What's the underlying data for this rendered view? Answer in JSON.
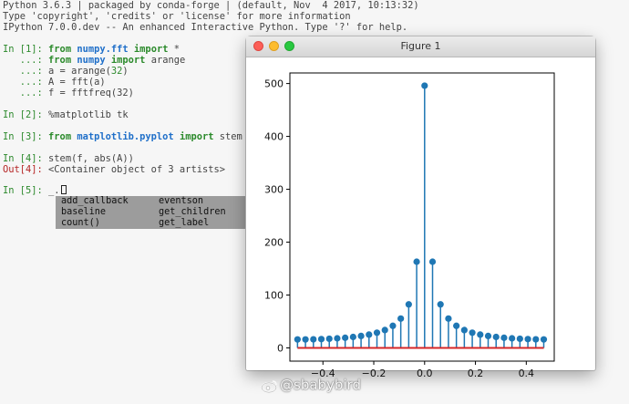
{
  "terminal": {
    "banner": [
      "Python 3.6.3 | packaged by conda-forge | (default, Nov  4 2017, 10:13:32)",
      "Type 'copyright', 'credits' or 'license' for more information",
      "IPython 7.0.0.dev -- An enhanced Interactive Python. Type '?' for help."
    ],
    "cells": {
      "c1": {
        "prompt": "In [1]: ",
        "cont": "   ...: ",
        "l1": {
          "kw1": "from",
          "mod": "numpy.fft",
          "kw2": "import",
          "rest": "*"
        },
        "l2": {
          "kw1": "from",
          "mod": "numpy",
          "kw2": "import",
          "rest": "arange"
        },
        "l3": {
          "pre": "a = arange(",
          "num": "32",
          "post": ")"
        },
        "l4": "A = fft(a)",
        "l5": "f = fftfreq(32)"
      },
      "c2": {
        "prompt": "In [2]: ",
        "code": "%matplotlib tk"
      },
      "c3": {
        "prompt": "In [3]: ",
        "kw1": "from",
        "mod": "matplotlib.pyplot",
        "kw2": "import",
        "rest": "stem"
      },
      "c4": {
        "prompt": "In [4]: ",
        "code": "stem(f, abs(A))",
        "out_prompt": "Out[4]: ",
        "out": "<Container object of 3 artists>"
      },
      "c5": {
        "prompt": "In [5]: ",
        "code": "_."
      }
    },
    "completions": {
      "col1": [
        "add_callback",
        "baseline",
        "count()"
      ],
      "col2": [
        "eventson",
        "get_children",
        "get_label"
      ]
    }
  },
  "figure": {
    "title": "Figure 1",
    "colors": {
      "stem": "#1f77b4",
      "baseline": "#d62728"
    }
  },
  "chart_data": {
    "type": "stem",
    "title": "",
    "xlabel": "",
    "ylabel": "",
    "xlim": [
      -0.53,
      0.51
    ],
    "ylim": [
      -25,
      520
    ],
    "xticks": [
      -0.4,
      -0.2,
      0.0,
      0.2,
      0.4
    ],
    "xtick_labels": [
      "−0.4",
      "−0.2",
      "0.0",
      "0.2",
      "0.4"
    ],
    "yticks": [
      0,
      100,
      200,
      300,
      400,
      500
    ],
    "ytick_labels": [
      "0",
      "100",
      "200",
      "300",
      "400",
      "500"
    ],
    "baseline": 0,
    "x": [
      -0.5,
      -0.46875,
      -0.4375,
      -0.40625,
      -0.375,
      -0.34375,
      -0.3125,
      -0.28125,
      -0.25,
      -0.21875,
      -0.1875,
      -0.15625,
      -0.125,
      -0.09375,
      -0.0625,
      -0.03125,
      0.0,
      0.03125,
      0.0625,
      0.09375,
      0.125,
      0.15625,
      0.1875,
      0.21875,
      0.25,
      0.28125,
      0.3125,
      0.34375,
      0.375,
      0.40625,
      0.4375,
      0.46875
    ],
    "y": [
      16,
      16.1,
      16.3,
      16.7,
      17.3,
      18.1,
      19.2,
      20.7,
      22.6,
      25.2,
      28.8,
      33.8,
      41.8,
      55.5,
      82.3,
      163.0,
      496,
      163.0,
      82.3,
      55.5,
      41.8,
      33.8,
      28.8,
      25.2,
      22.6,
      20.7,
      19.2,
      18.1,
      17.3,
      16.7,
      16.3,
      16.1
    ]
  },
  "watermark": {
    "text": "@sbabybird"
  }
}
